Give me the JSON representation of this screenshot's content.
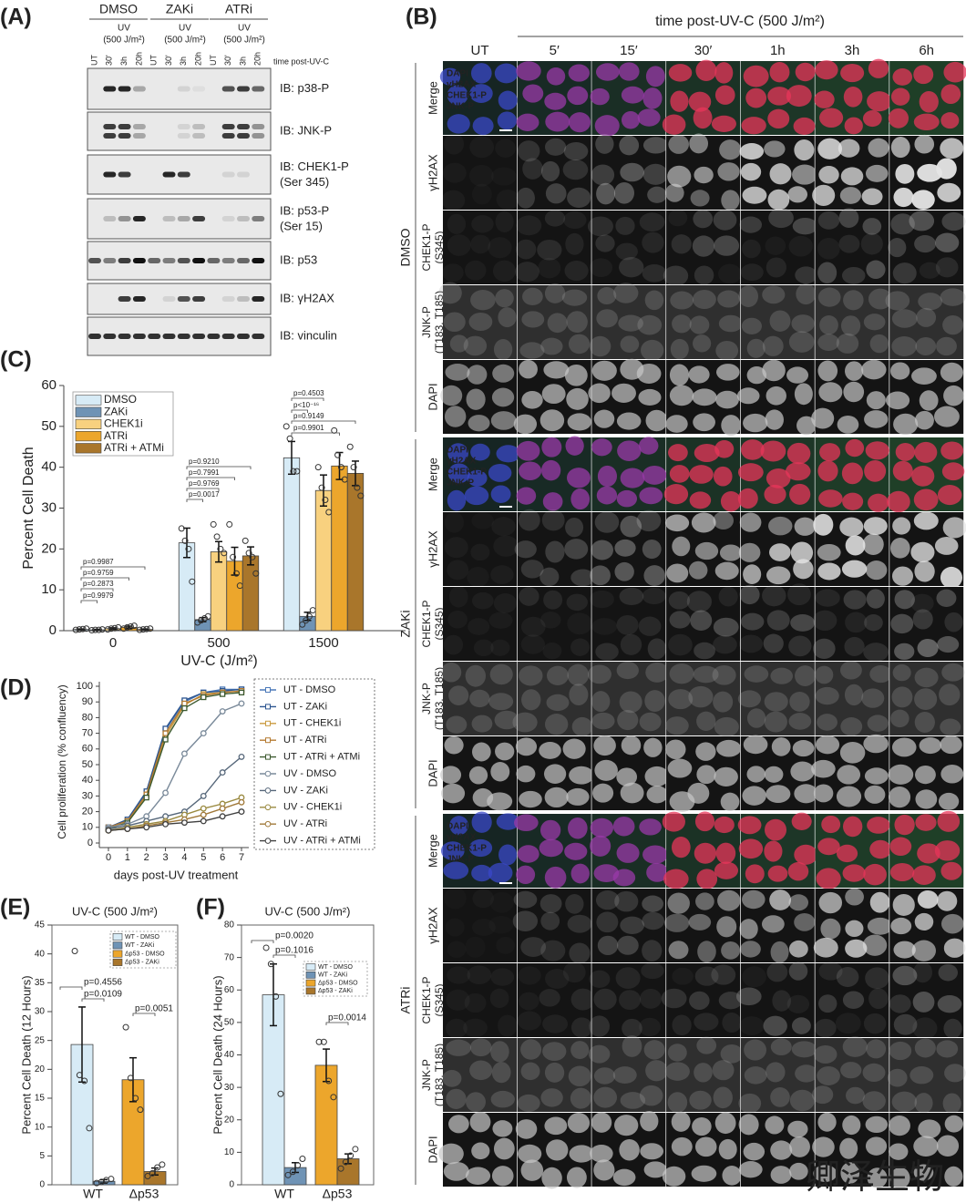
{
  "panel_labels": [
    "(A)",
    "(B)",
    "(C)",
    "(D)",
    "(E)",
    "(F)"
  ],
  "blot": {
    "conditions": [
      "DMSO",
      "ZAKi",
      "ATRi"
    ],
    "uv_label": "UV",
    "dose_label": "(500 J/m²)",
    "lanes": [
      "UT",
      "30'",
      "3h",
      "20h"
    ],
    "time_label": "time post-UV-C",
    "rows": [
      [
        "IB: p38-P"
      ],
      [
        "IB: JNK-P"
      ],
      [
        "IB: CHEK1-P",
        "(Ser 345)"
      ],
      [
        "IB: p53-P",
        "(Ser 15)"
      ],
      [
        "IB: p53"
      ],
      [
        "IB: γH2AX"
      ],
      [
        "IB: vinculin"
      ]
    ]
  },
  "imaging": {
    "title": "time post-UV-C (500 J/m²)",
    "columns": [
      "UT",
      "5′",
      "15′",
      "30′",
      "1h",
      "3h",
      "6h"
    ],
    "groups": [
      "DMSO",
      "ZAKi",
      "ATRi"
    ],
    "rows": [
      [
        "Merge"
      ],
      [
        "γH2AX"
      ],
      [
        "CHEK1-P",
        "(S345)"
      ],
      [
        "JNK-P",
        "(T183, T185)"
      ],
      [
        "DAPI"
      ]
    ],
    "merge_legend": [
      {
        "text": "DAPI",
        "color": "#5a6cff"
      },
      {
        "text": "γH2AX",
        "color": "#ff3a3a"
      },
      {
        "text": "CHEK1-P",
        "color": "#e27ae2"
      },
      {
        "text": "JNK-P",
        "color": "#4fe04f"
      }
    ]
  },
  "chart_data": [
    {
      "type": "bar",
      "ylabel": "Percent Cell Death",
      "xlabel": "UV-C (J/m²)",
      "categories": [
        "0",
        "500",
        "1500"
      ],
      "ylim": [
        0,
        60
      ],
      "yticks": [
        0,
        10,
        20,
        30,
        40,
        50,
        60
      ],
      "legend": "upper left",
      "series": [
        {
          "name": "DMSO",
          "color": "#d7ebf6",
          "values": [
            0.3,
            21.5,
            42.3
          ],
          "errors": [
            0.1,
            3.6,
            4.0
          ],
          "points": [
            [
              0.2,
              0.3,
              0.4,
              0.5
            ],
            [
              25,
              22,
              20,
              12
            ],
            [
              50,
              47,
              39,
              39
            ]
          ]
        },
        {
          "name": "ZAKi",
          "color": "#6f93b5",
          "values": [
            0.2,
            2.7,
            3.5
          ],
          "errors": [
            0.1,
            0.5,
            1.0
          ],
          "points": [
            [
              0.1,
              0.2,
              0.2,
              0.3
            ],
            [
              2,
              2.5,
              3,
              3.5
            ],
            [
              1.5,
              2.5,
              3.5,
              5
            ]
          ]
        },
        {
          "name": "CHEK1i",
          "color": "#f8d17f",
          "values": [
            0.5,
            19.3,
            34.3
          ],
          "errors": [
            0.2,
            2.5,
            3.8
          ],
          "points": [
            [
              0.3,
              0.5,
              0.6,
              0.8
            ],
            [
              26,
              23,
              20,
              19
            ],
            [
              40,
              35,
              32,
              29
            ]
          ]
        },
        {
          "name": "ATRi",
          "color": "#eca62c",
          "values": [
            0.8,
            17.0,
            40.3
          ],
          "errors": [
            0.3,
            3.4,
            3.3
          ],
          "points": [
            [
              0.5,
              0.8,
              1,
              1.2
            ],
            [
              26,
              18,
              14,
              11
            ],
            [
              49,
              43,
              40,
              37
            ]
          ]
        },
        {
          "name": "ATRi + ATMi",
          "color": "#a9762b",
          "values": [
            0.3,
            18.3,
            38.5
          ],
          "errors": [
            0.1,
            2.2,
            3.0
          ],
          "points": [
            [
              0.2,
              0.3,
              0.4,
              0.5
            ],
            [
              22,
              19,
              18,
              14
            ],
            [
              45,
              40,
              35,
              33
            ]
          ]
        }
      ],
      "annotations": [
        "p=0.9987",
        "p=0.9759",
        "p=0.2873",
        "p=0.9979",
        "p=0.9210",
        "p=0.7991",
        "p=0.9769",
        "p=0.0017",
        "p=0.4503",
        "p<10⁻¹⁶",
        "p=0.9149",
        "p=0.9901"
      ]
    },
    {
      "type": "line",
      "ylabel": "Cell proliferation (% confluency)",
      "xlabel": "days post-UV treatment",
      "x": [
        0,
        1,
        2,
        3,
        4,
        5,
        6,
        7
      ],
      "xlim": [
        0,
        7
      ],
      "xticks": [
        0,
        1,
        2,
        3,
        4,
        5,
        6,
        7
      ],
      "ylim": [
        0,
        100
      ],
      "yticks": [
        0,
        10,
        20,
        30,
        40,
        50,
        60,
        70,
        80,
        90,
        100
      ],
      "legend": "right",
      "series": [
        {
          "name": "UT - DMSO",
          "color": "#4a78b8",
          "marker": "square",
          "values": [
            10,
            14,
            32,
            72,
            90,
            96,
            98,
            98
          ]
        },
        {
          "name": "UT - ZAKi",
          "color": "#2c5590",
          "marker": "square",
          "values": [
            10,
            15,
            33,
            73,
            91,
            96,
            97,
            98
          ]
        },
        {
          "name": "UT - CHEK1i",
          "color": "#c99a3e",
          "marker": "square",
          "values": [
            9,
            13,
            30,
            68,
            88,
            95,
            96,
            97
          ]
        },
        {
          "name": "UT - ATRi",
          "color": "#b47a30",
          "marker": "square",
          "values": [
            10,
            14,
            31,
            70,
            89,
            94,
            96,
            97
          ]
        },
        {
          "name": "UT - ATRi + ATMi",
          "color": "#3d5a30",
          "marker": "square",
          "values": [
            9,
            13,
            29,
            66,
            86,
            93,
            95,
            96
          ]
        },
        {
          "name": "UV - DMSO",
          "color": "#7a8a9a",
          "marker": "circle",
          "values": [
            10,
            12,
            17,
            32,
            57,
            70,
            84,
            89
          ]
        },
        {
          "name": "UV - ZAKi",
          "color": "#56677a",
          "marker": "circle",
          "values": [
            9,
            11,
            14,
            17,
            20,
            30,
            45,
            55
          ]
        },
        {
          "name": "UV - CHEK1i",
          "color": "#9a8a40",
          "marker": "circle",
          "values": [
            8,
            10,
            12,
            14,
            18,
            22,
            25,
            29
          ]
        },
        {
          "name": "UV - ATRi",
          "color": "#a07838",
          "marker": "circle",
          "values": [
            8,
            9,
            11,
            13,
            15,
            18,
            22,
            26
          ]
        },
        {
          "name": "UV - ATRi + ATMi",
          "color": "#404040",
          "marker": "circle",
          "values": [
            8,
            9,
            10,
            12,
            13,
            14,
            17,
            20
          ]
        }
      ]
    },
    {
      "type": "bar",
      "title": "UV-C (500 J/m²)",
      "ylabel": "Percent Cell Death (12 Hours)",
      "categories": [
        "WT",
        "Δp53"
      ],
      "ylim": [
        0,
        45
      ],
      "yticks": [
        0,
        5,
        10,
        15,
        20,
        25,
        30,
        35,
        40,
        45
      ],
      "legend": "upper right",
      "series": [
        {
          "name": "WT - DMSO",
          "color": "#d7ebf6",
          "values": [
            24.3,
            null
          ],
          "errors": [
            6.5,
            null
          ],
          "points": [
            [
              40.5,
              19,
              18,
              9.8
            ],
            null
          ]
        },
        {
          "name": "WT - ZAKi",
          "color": "#6f93b5",
          "values": [
            0.6,
            null
          ],
          "errors": [
            0.3,
            null
          ],
          "points": [
            [
              0.3,
              0.5,
              0.8,
              1
            ],
            null
          ]
        },
        {
          "name": "Δp53 - DMSO",
          "color": "#eca62c",
          "values": [
            null,
            18.2
          ],
          "errors": [
            null,
            3.8
          ],
          "points": [
            null,
            [
              27.3,
              18.5,
              15,
              13
            ]
          ]
        },
        {
          "name": "Δp53 - ZAKi",
          "color": "#a9762b",
          "values": [
            null,
            2.3
          ],
          "errors": [
            null,
            0.6
          ],
          "points": [
            null,
            [
              1.5,
              2,
              3,
              3.5
            ]
          ]
        }
      ],
      "annotations": [
        "p=0.0109",
        "p=0.4556",
        "p=0.0051"
      ]
    },
    {
      "type": "bar",
      "title": "UV-C (500 J/m²)",
      "ylabel": "Percent Cell Death (24 Hours)",
      "categories": [
        "WT",
        "Δp53"
      ],
      "ylim": [
        0,
        80
      ],
      "yticks": [
        0,
        10,
        20,
        30,
        40,
        50,
        60,
        70,
        80
      ],
      "legend": "upper right",
      "series": [
        {
          "name": "WT - DMSO",
          "color": "#d7ebf6",
          "values": [
            58.5,
            null
          ],
          "errors": [
            9.5,
            null
          ],
          "points": [
            [
              73,
              68,
              58,
              28
            ],
            null
          ]
        },
        {
          "name": "WT - ZAKi",
          "color": "#6f93b5",
          "values": [
            5.3,
            null
          ],
          "errors": [
            1.5,
            null
          ],
          "points": [
            [
              3,
              4,
              6,
              8
            ],
            null
          ]
        },
        {
          "name": "Δp53 - DMSO",
          "color": "#eca62c",
          "values": [
            null,
            36.8
          ],
          "errors": [
            null,
            5.0
          ],
          "points": [
            null,
            [
              44,
              44,
              32,
              27
            ]
          ]
        },
        {
          "name": "Δp53 - ZAKi",
          "color": "#a9762b",
          "values": [
            null,
            8.0
          ],
          "errors": [
            null,
            1.5
          ],
          "points": [
            null,
            [
              5,
              7,
              9,
              11
            ]
          ]
        }
      ],
      "annotations": [
        "p=0.1016",
        "p=0.0020",
        "p=0.0014"
      ]
    }
  ],
  "watermark": "卿泽生物"
}
